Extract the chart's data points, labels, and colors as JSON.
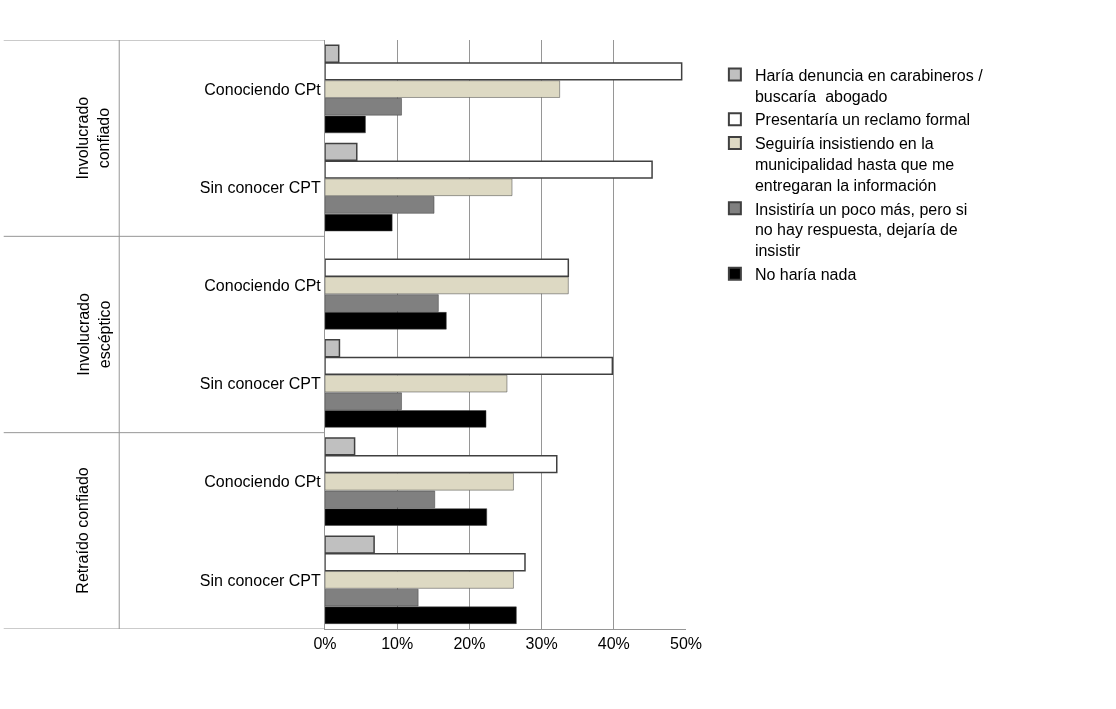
{
  "chart_data": {
    "type": "bar",
    "orientation": "horizontal",
    "categories": [
      "Conociendo CPt",
      "Sin conocer CPT",
      "Conociendo CPt",
      "Sin conocer CPT",
      "Conociendo CPt",
      "Sin conocer CPT"
    ],
    "annotations": [
      "Involucrado confiado",
      "Involucrado escéptico",
      "Retraído confiado"
    ],
    "series": [
      {
        "name": "Haría denuncia en carabineros / buscaría  abogado",
        "color": "#c0c0c0",
        "values": [
          1.9,
          4.4,
          null,
          2.0,
          4.1,
          6.8
        ]
      },
      {
        "name": "Presentaría un reclamo formal",
        "color": "#ffffff",
        "values": [
          49.4,
          45.3,
          33.7,
          39.8,
          32.1,
          27.7
        ]
      },
      {
        "name": "Seguiría insistiendo en la municipalidad hasta que me entregaran la información",
        "color": "#ddd9c3",
        "values": [
          32.5,
          25.9,
          33.7,
          25.2,
          26.1,
          26.1
        ]
      },
      {
        "name": "Insistiría un poco más, pero si no hay respuesta, dejaría de insistir",
        "color": "#808080",
        "values": [
          10.6,
          15.1,
          15.7,
          10.6,
          15.2,
          12.9
        ]
      },
      {
        "name": "No haría nada",
        "color": "#000000",
        "values": [
          5.6,
          9.3,
          16.8,
          22.3,
          22.4,
          26.5
        ]
      }
    ],
    "xlim": [
      0,
      50
    ],
    "xticks": [
      {
        "value": 0,
        "label": "0%"
      },
      {
        "value": 10,
        "label": "10%"
      },
      {
        "value": 20,
        "label": "20%"
      },
      {
        "value": 30,
        "label": "30%"
      },
      {
        "value": 40,
        "label": "40%"
      },
      {
        "value": 50,
        "label": "50%"
      }
    ],
    "grid": "x",
    "legend": "right"
  }
}
